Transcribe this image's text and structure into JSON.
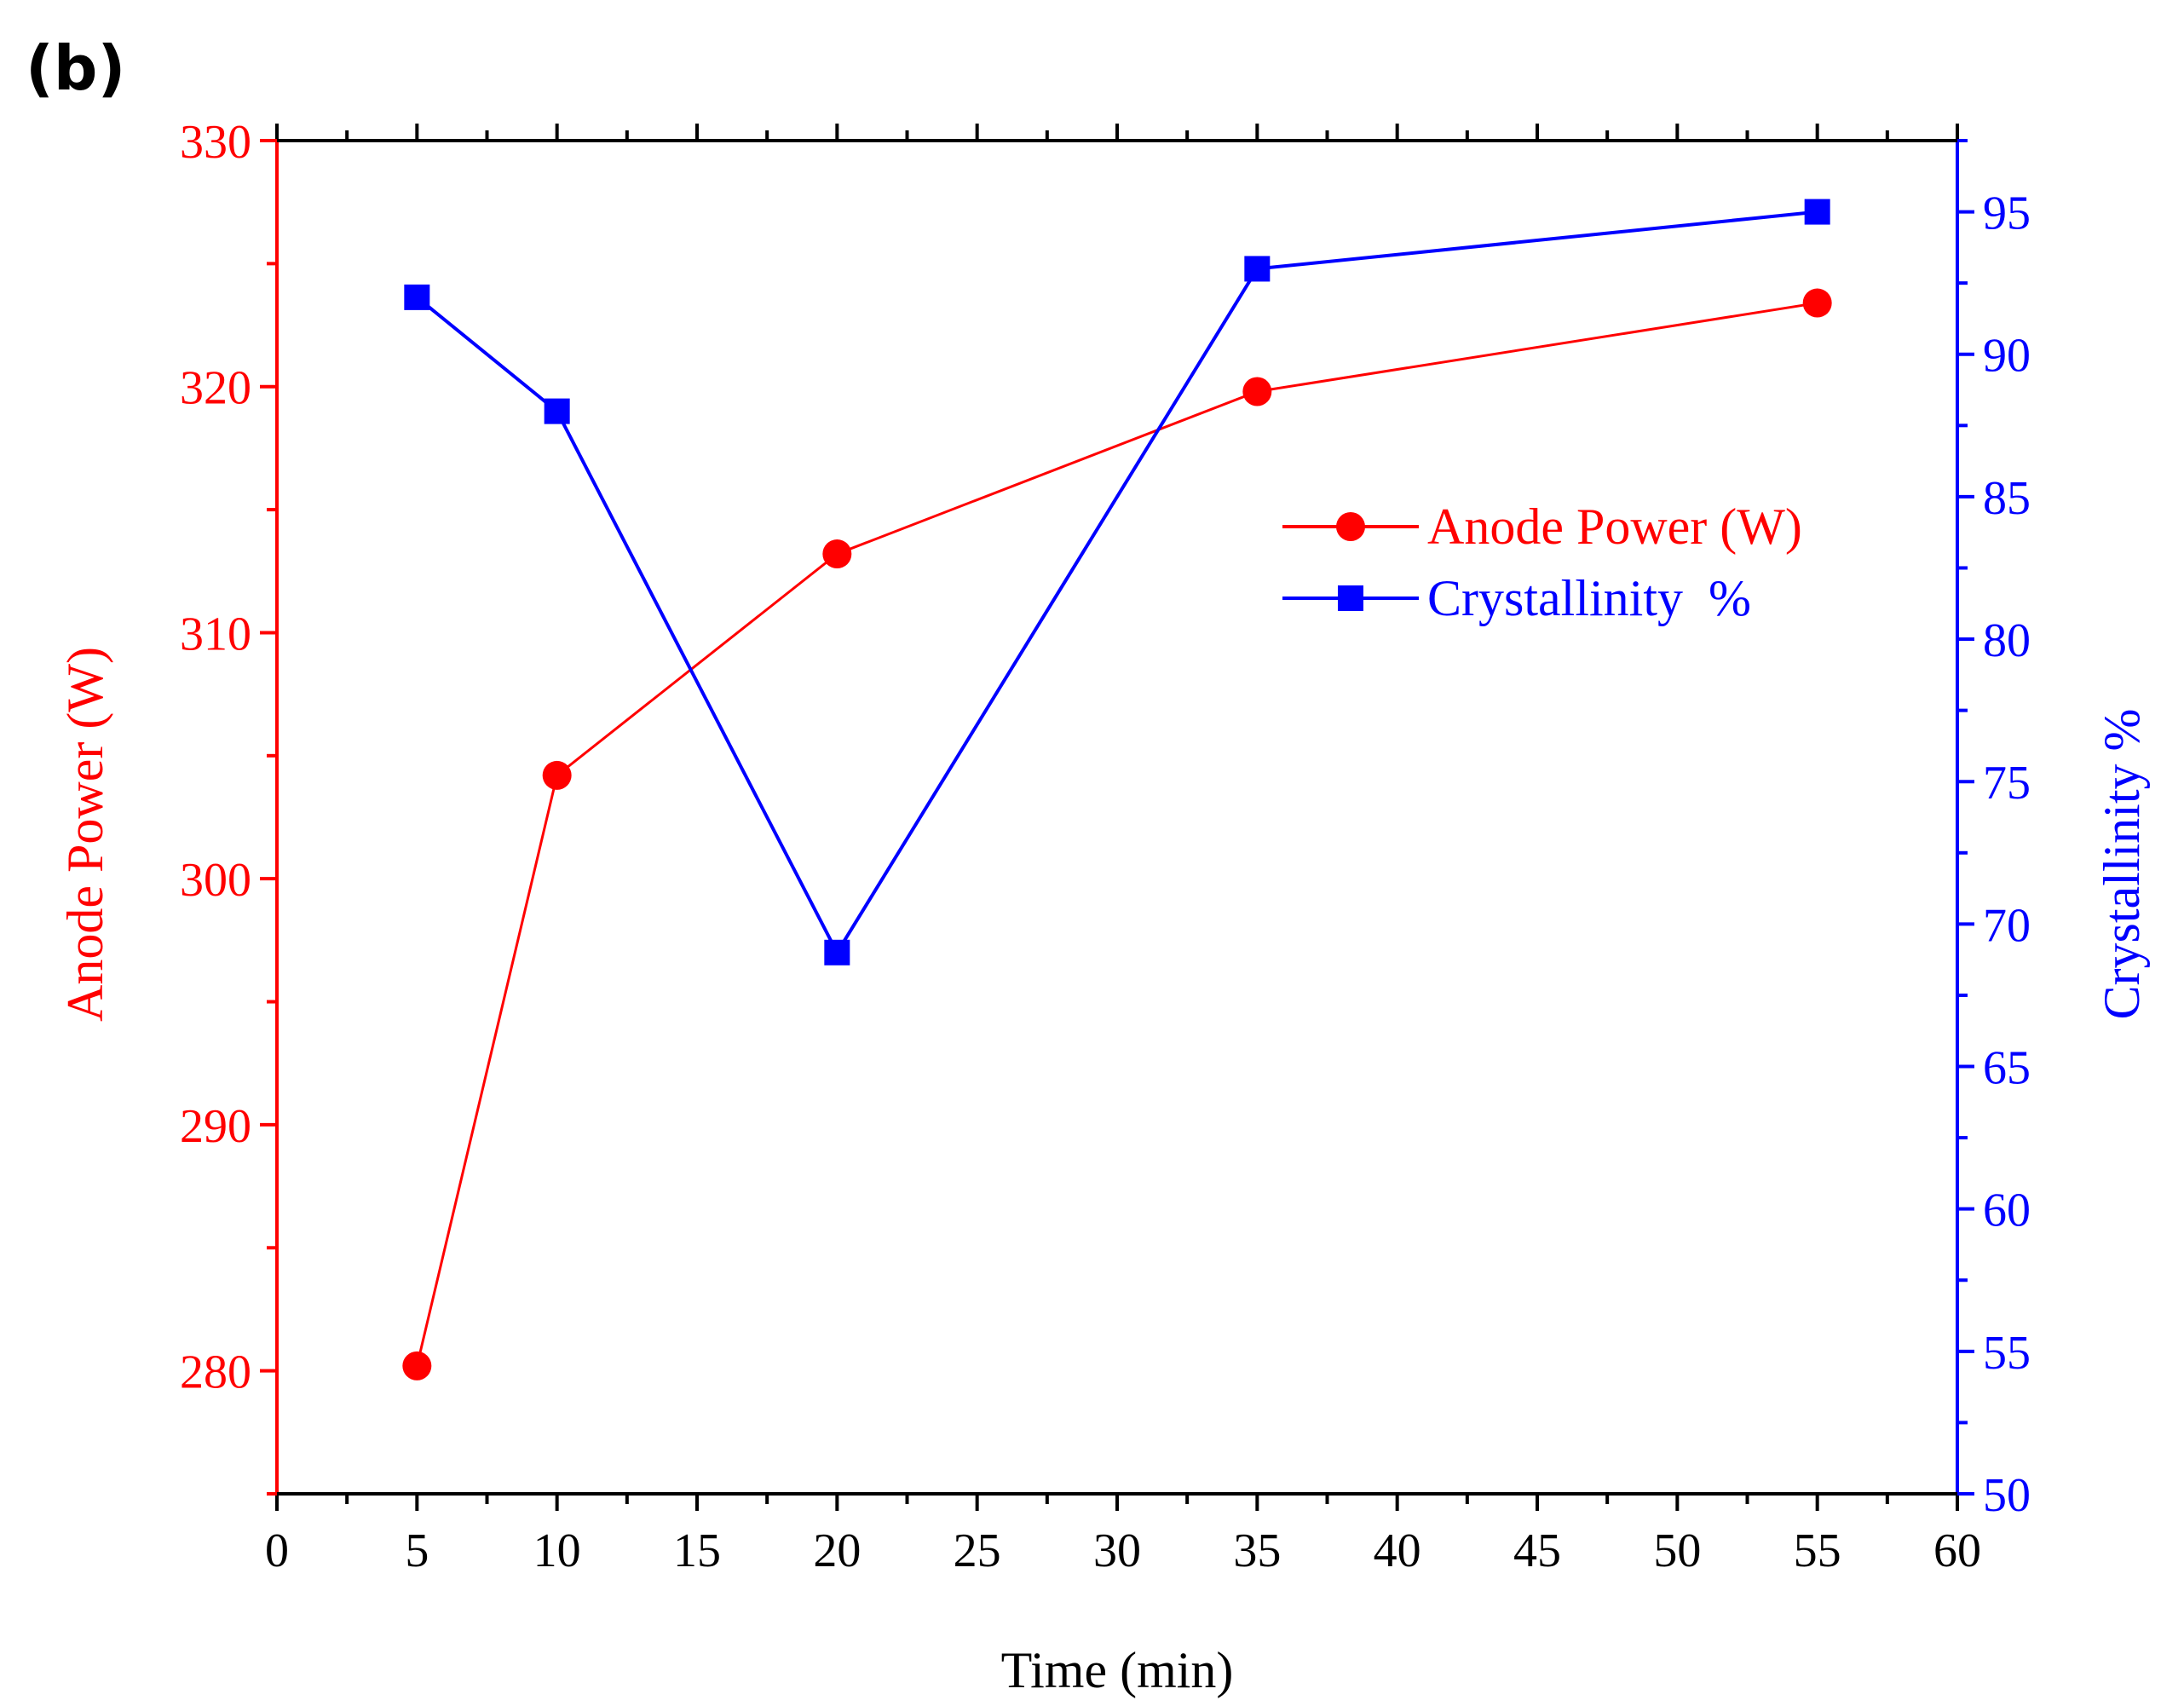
{
  "panel_label": "(b)",
  "chart_data": {
    "type": "line",
    "title": "",
    "xlabel": "Time (min)",
    "ylabel": "Anode Power (W)",
    "y2label": "Crystallinity %",
    "xlim": [
      0,
      60
    ],
    "ylim": [
      275,
      330
    ],
    "y2lim": [
      50,
      97.5
    ],
    "x_ticks": [
      "0",
      "5",
      "10",
      "15",
      "20",
      "25",
      "30",
      "35",
      "40",
      "45",
      "50",
      "55",
      "60"
    ],
    "y_ticks": [
      "280",
      "290",
      "300",
      "310",
      "320",
      "330"
    ],
    "y2_ticks": [
      "50",
      "55",
      "60",
      "65",
      "70",
      "75",
      "80",
      "85",
      "90",
      "95"
    ],
    "grid": false,
    "legend_position": "center-right",
    "series": [
      {
        "name": "Anode Power (W)",
        "axis": "left",
        "color": "#ff0000",
        "marker": "circle",
        "x": [
          5,
          10,
          20,
          35,
          55
        ],
        "values": [
          280.2,
          304.2,
          313.2,
          319.8,
          323.4
        ]
      },
      {
        "name": "Crystallinity  %",
        "axis": "right",
        "color": "#0000ff",
        "marker": "square",
        "x": [
          5,
          10,
          20,
          35,
          55
        ],
        "values": [
          92,
          88,
          69,
          93,
          95
        ]
      }
    ]
  }
}
